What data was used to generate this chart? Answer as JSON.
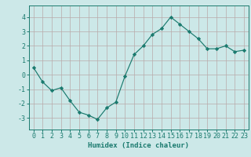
{
  "x": [
    0,
    1,
    2,
    3,
    4,
    5,
    6,
    7,
    8,
    9,
    10,
    11,
    12,
    13,
    14,
    15,
    16,
    17,
    18,
    19,
    20,
    21,
    22,
    23
  ],
  "y": [
    0.5,
    -0.5,
    -1.1,
    -0.9,
    -1.8,
    -2.6,
    -2.8,
    -3.1,
    -2.3,
    -1.9,
    -0.1,
    1.4,
    2.0,
    2.8,
    3.2,
    4.0,
    3.5,
    3.0,
    2.5,
    1.8,
    1.8,
    2.0,
    1.6,
    1.7
  ],
  "line_color": "#1a7a6e",
  "marker": "D",
  "marker_size": 2.2,
  "bg_color": "#cce8e8",
  "grid_color": "#b8aaaa",
  "xlabel": "Humidex (Indice chaleur)",
  "xlabel_color": "#1a7a6e",
  "xlim": [
    -0.5,
    23.5
  ],
  "ylim": [
    -3.8,
    4.8
  ],
  "yticks": [
    -3,
    -2,
    -1,
    0,
    1,
    2,
    3,
    4
  ],
  "xticks": [
    0,
    1,
    2,
    3,
    4,
    5,
    6,
    7,
    8,
    9,
    10,
    11,
    12,
    13,
    14,
    15,
    16,
    17,
    18,
    19,
    20,
    21,
    22,
    23
  ],
  "tick_color": "#1a7a6e",
  "spine_color": "#1a7a6e",
  "font_size": 6.0,
  "xlabel_fontsize": 6.5
}
